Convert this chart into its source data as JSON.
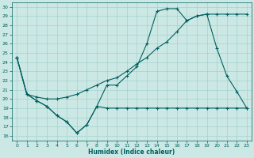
{
  "xlabel": "Humidex (Indice chaleur)",
  "bg_color": "#cce8e4",
  "line_color": "#006060",
  "grid_color": "#99cccc",
  "xlim": [
    -0.5,
    23.5
  ],
  "ylim": [
    15.5,
    30.5
  ],
  "yticks": [
    16,
    17,
    18,
    19,
    20,
    21,
    22,
    23,
    24,
    25,
    26,
    27,
    28,
    29,
    30
  ],
  "xticks": [
    0,
    1,
    2,
    3,
    4,
    5,
    6,
    7,
    8,
    9,
    10,
    11,
    12,
    13,
    14,
    15,
    16,
    17,
    18,
    19,
    20,
    21,
    22,
    23
  ],
  "line1_x": [
    0,
    1,
    2,
    3,
    4,
    5,
    6,
    7,
    8,
    9,
    10,
    11,
    12,
    13,
    14,
    15,
    16,
    17,
    18,
    19,
    20,
    21,
    22,
    23
  ],
  "line1_y": [
    24.5,
    20.5,
    19.8,
    19.2,
    18.2,
    17.5,
    16.3,
    17.2,
    19.2,
    19.0,
    19.0,
    19.0,
    19.0,
    19.0,
    19.0,
    19.0,
    19.0,
    19.0,
    19.0,
    19.0,
    19.0,
    19.0,
    19.0,
    19.0
  ],
  "line2_x": [
    0,
    1,
    2,
    3,
    4,
    5,
    6,
    7,
    8,
    9,
    10,
    11,
    12,
    13,
    14,
    15,
    16,
    17,
    18,
    19,
    20,
    21,
    22,
    23
  ],
  "line2_y": [
    24.5,
    20.5,
    19.8,
    19.2,
    18.2,
    17.5,
    16.3,
    17.2,
    19.2,
    21.5,
    21.5,
    22.5,
    23.5,
    26.0,
    29.5,
    29.8,
    29.8,
    28.5,
    29.0,
    29.2,
    25.5,
    22.5,
    20.8,
    19.0
  ],
  "line3_x": [
    0,
    1,
    2,
    3,
    4,
    5,
    6,
    7,
    8,
    9,
    10,
    11,
    12,
    13,
    14,
    15,
    16,
    17,
    18,
    19,
    20,
    21,
    22,
    23
  ],
  "line3_y": [
    24.5,
    20.5,
    20.2,
    20.0,
    20.0,
    20.2,
    20.5,
    21.0,
    21.5,
    22.0,
    22.3,
    23.0,
    23.8,
    24.5,
    25.5,
    26.2,
    27.3,
    28.5,
    29.0,
    29.2,
    29.2,
    29.2,
    29.2,
    29.2
  ]
}
